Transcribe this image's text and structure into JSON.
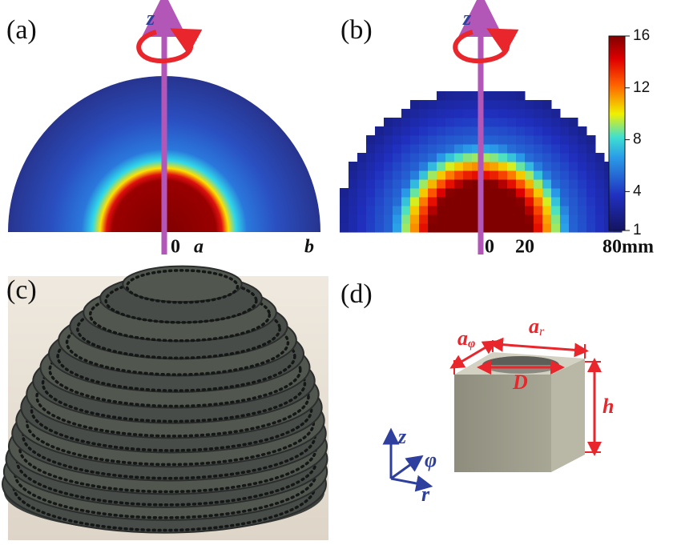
{
  "panels": {
    "a": {
      "label": "(a)",
      "axis": "z",
      "ticks": [
        "0",
        "a",
        "b"
      ]
    },
    "b": {
      "label": "(b)",
      "axis": "z",
      "ticks": [
        "0",
        "20",
        "80mm"
      ],
      "colorbar": {
        "lim": [
          1,
          16
        ],
        "ticks": [
          1,
          4,
          8,
          12,
          16
        ]
      }
    },
    "c": {
      "label": "(c)"
    },
    "d": {
      "label": "(d)",
      "dims": {
        "a_phi": {
          "main": "a",
          "sub": "φ"
        },
        "a_r": {
          "main": "a",
          "sub": "r"
        },
        "D": "D",
        "h": "h"
      },
      "axes": [
        "z",
        "φ",
        "r"
      ]
    }
  }
}
